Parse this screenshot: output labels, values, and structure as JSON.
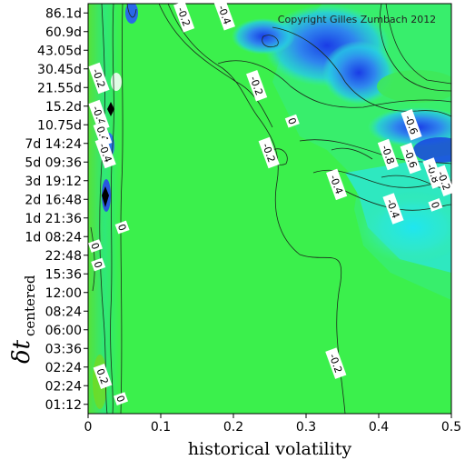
{
  "chart_data": {
    "type": "heatmap",
    "xlabel": "historical volatility",
    "ylabel_main": "δt",
    "ylabel_sub": "centered",
    "copyright": "Copyright Gilles Zumbach 2012",
    "xlim": [
      0,
      0.5
    ],
    "x_ticks": [
      0,
      0.1,
      0.2,
      0.3,
      0.4,
      0.5
    ],
    "x_tick_labels": [
      "0",
      "0.1",
      "0.2",
      "0.3",
      "0.4",
      "0.5"
    ],
    "y_tick_labels": [
      "86.1d",
      "60.9d",
      "43.05d",
      "30.45d",
      "21.55d",
      "15.2d",
      "10.75d",
      "7d 14:24",
      "5d 09:36",
      "3d 19:12",
      "2d 16:48",
      "1d 21:36",
      "1d 08:24",
      "22:48",
      "15:36",
      "12:00",
      "08:24",
      "06:00",
      "03:36",
      "02:24",
      "02:24",
      "01:12"
    ],
    "contour_levels": [
      -0.8,
      -0.6,
      -0.4,
      -0.2,
      0,
      0.2,
      0.4
    ],
    "contour_labels": [
      {
        "text": "-0.2",
        "x": 0.015,
        "y": 17.5
      },
      {
        "text": "-0.4",
        "x": 0.015,
        "y": 15.5
      },
      {
        "text": "0.4",
        "x": 0.02,
        "y": 14.5
      },
      {
        "text": "-0.4",
        "x": 0.024,
        "y": 13.5
      },
      {
        "text": "0",
        "x": 0.047,
        "y": 9.5
      },
      {
        "text": "0",
        "x": 0.01,
        "y": 8.5
      },
      {
        "text": "0",
        "x": 0.014,
        "y": 7.5
      },
      {
        "text": "0.2",
        "x": 0.02,
        "y": 1.5
      },
      {
        "text": "0",
        "x": 0.045,
        "y": 0.3
      },
      {
        "text": "-0.2",
        "x": 0.132,
        "y": 20.8
      },
      {
        "text": "-0.4",
        "x": 0.188,
        "y": 20.9
      },
      {
        "text": "-0.2",
        "x": 0.232,
        "y": 17.1
      },
      {
        "text": "0",
        "x": 0.281,
        "y": 15.2
      },
      {
        "text": "-0.2",
        "x": 0.249,
        "y": 13.5
      },
      {
        "text": "-0.4",
        "x": 0.342,
        "y": 11.8
      },
      {
        "text": "-0.6",
        "x": 0.445,
        "y": 15.0
      },
      {
        "text": "-0.8",
        "x": 0.413,
        "y": 13.4
      },
      {
        "text": "-0.6",
        "x": 0.444,
        "y": 13.2
      },
      {
        "text": "-0.8",
        "x": 0.475,
        "y": 12.4
      },
      {
        "text": "-0.2",
        "x": 0.49,
        "y": 12.0
      },
      {
        "text": "-0.4",
        "x": 0.42,
        "y": 10.5
      },
      {
        "text": "0",
        "x": 0.478,
        "y": 10.7
      },
      {
        "text": "-0.2",
        "x": 0.341,
        "y": 2.2
      }
    ],
    "colorscale": [
      "#0a2ce0",
      "#2878ee",
      "#21c8e8",
      "#22ecc0",
      "#33f07a",
      "#3af14c",
      "#7ad81a"
    ]
  }
}
